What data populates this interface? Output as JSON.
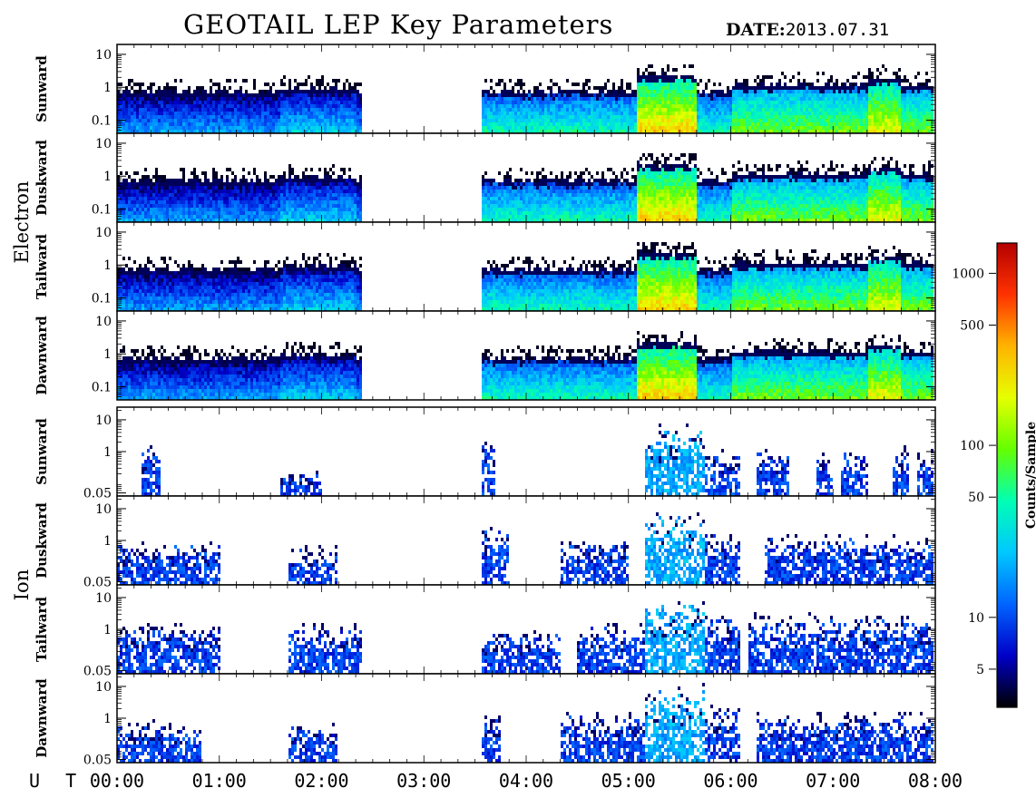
{
  "title": "GEOTAIL LEP Key Parameters",
  "date_label": "DATE:",
  "date_value": "2013.07.31",
  "chart_data": {
    "type": "heatmap",
    "groups": [
      {
        "name": "Electron",
        "panels": [
          "Sunward",
          "Duskward",
          "Tailward",
          "Dawnward"
        ],
        "y_ticks": [
          "10",
          "1",
          "0.1"
        ],
        "y_scale": "log",
        "ylim": [
          0.04,
          20
        ]
      },
      {
        "name": "Ion",
        "panels": [
          "Sunward",
          "Duskward",
          "Tailward",
          "Dawnward"
        ],
        "y_ticks": [
          "10",
          "1",
          "0.05"
        ],
        "y_scale": "log",
        "ylim": [
          0.04,
          25
        ]
      }
    ],
    "x_axis_label": "U T",
    "x_ticks": [
      "00:00",
      "01:00",
      "02:00",
      "03:00",
      "04:00",
      "05:00",
      "06:00",
      "07:00",
      "08:00"
    ],
    "xlim": [
      "00:00",
      "08:00"
    ],
    "data_gap": [
      "02:24",
      "03:34"
    ],
    "colorbar": {
      "label": "Counts/Sample",
      "scale": "log",
      "range": [
        3,
        1500
      ],
      "ticks": [
        "1000",
        "500",
        "100",
        "50",
        "10",
        "5"
      ],
      "colors": [
        "#000000",
        "#0000c8",
        "#0064ff",
        "#00c8ff",
        "#00ffb4",
        "#64ff00",
        "#e6ff00",
        "#ffb400",
        "#ff3200",
        "#b40000"
      ]
    }
  }
}
